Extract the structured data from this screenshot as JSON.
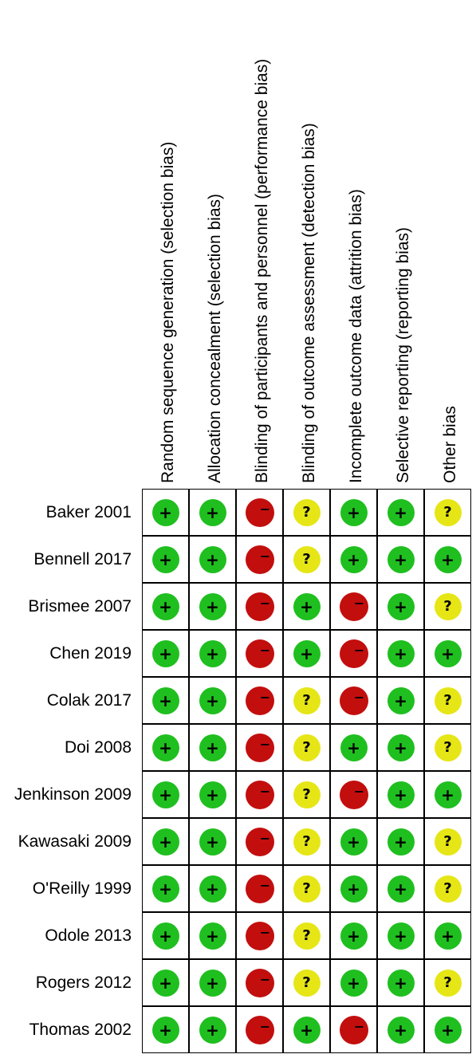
{
  "columns": [
    "Random sequence generation (selection bias)",
    "Allocation concealment (selection bias)",
    "Blinding of participants and personnel (performance bias)",
    "Blinding of outcome assessment (detection bias)",
    "Incomplete outcome data (attrition bias)",
    "Selective reporting (reporting bias)",
    "Other bias"
  ],
  "symbols": {
    "low": "+",
    "high": "−",
    "unclear": "?"
  },
  "colors": {
    "low": "#1fbf1f",
    "high": "#c30e0e",
    "unclear": "#e6e617"
  },
  "studies": [
    {
      "name": "Baker 2001",
      "ratings": [
        "low",
        "low",
        "high",
        "unclear",
        "low",
        "low",
        "unclear"
      ]
    },
    {
      "name": "Bennell 2017",
      "ratings": [
        "low",
        "low",
        "high",
        "unclear",
        "low",
        "low",
        "low"
      ]
    },
    {
      "name": "Brismee 2007",
      "ratings": [
        "low",
        "low",
        "high",
        "low",
        "high",
        "low",
        "unclear"
      ]
    },
    {
      "name": "Chen 2019",
      "ratings": [
        "low",
        "low",
        "high",
        "low",
        "high",
        "low",
        "low"
      ]
    },
    {
      "name": "Colak 2017",
      "ratings": [
        "low",
        "low",
        "high",
        "unclear",
        "high",
        "low",
        "unclear"
      ]
    },
    {
      "name": "Doi 2008",
      "ratings": [
        "low",
        "low",
        "high",
        "unclear",
        "low",
        "low",
        "unclear"
      ]
    },
    {
      "name": "Jenkinson 2009",
      "ratings": [
        "low",
        "low",
        "high",
        "unclear",
        "high",
        "low",
        "low"
      ]
    },
    {
      "name": "Kawasaki 2009",
      "ratings": [
        "low",
        "low",
        "high",
        "unclear",
        "low",
        "low",
        "unclear"
      ]
    },
    {
      "name": "O'Reilly 1999",
      "ratings": [
        "low",
        "low",
        "high",
        "unclear",
        "low",
        "low",
        "unclear"
      ]
    },
    {
      "name": "Odole 2013",
      "ratings": [
        "low",
        "low",
        "high",
        "unclear",
        "low",
        "low",
        "low"
      ]
    },
    {
      "name": "Rogers 2012",
      "ratings": [
        "low",
        "low",
        "high",
        "unclear",
        "low",
        "low",
        "unclear"
      ]
    },
    {
      "name": "Thomas 2002",
      "ratings": [
        "low",
        "low",
        "high",
        "low",
        "high",
        "low",
        "low"
      ]
    }
  ]
}
